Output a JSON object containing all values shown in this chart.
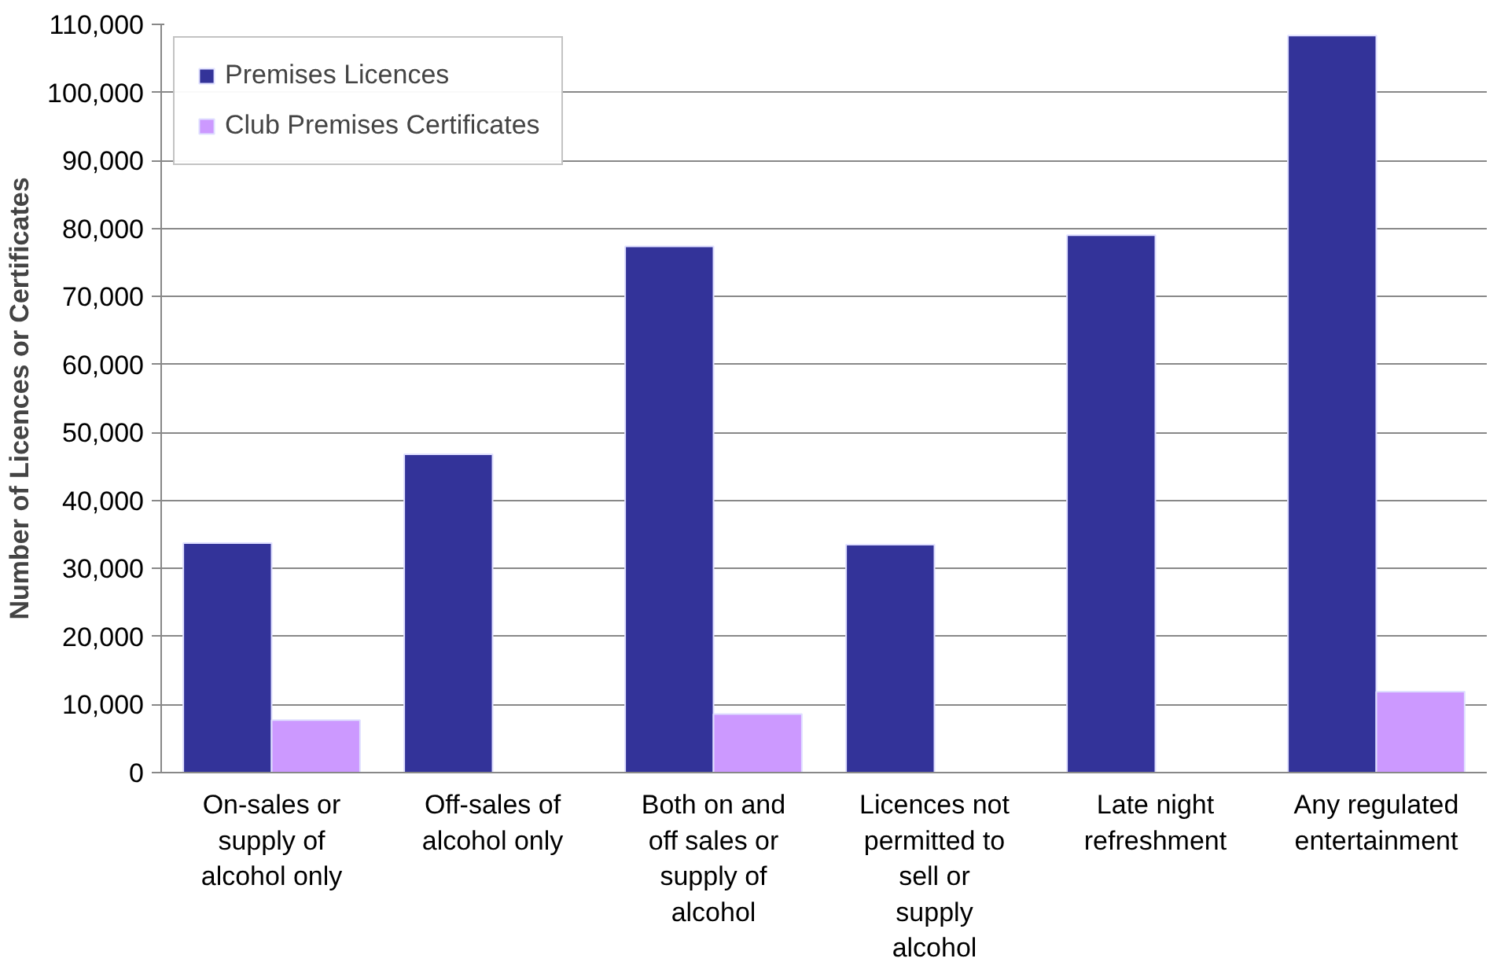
{
  "chart_data": {
    "type": "bar",
    "categories": [
      "On-sales or supply of alcohol only",
      "Off-sales of alcohol only",
      "Both on and off sales or supply of alcohol",
      "Licences not permitted to sell or supply alcohol",
      "Late night refreshment",
      "Any regulated entertainment"
    ],
    "ylabel": "Number of Licences or Certificates",
    "series": [
      {
        "name": "Premises Licences",
        "color": "#333399",
        "values": [
          33750,
          46800,
          77350,
          33500,
          79000,
          108350
        ]
      },
      {
        "name": "Club Premises Certificates",
        "color": "#cc99ff",
        "values": [
          7700,
          null,
          8600,
          null,
          null,
          11900
        ]
      }
    ],
    "ylim": [
      0,
      110000
    ],
    "yticks": [
      {
        "value": 0,
        "label": "0"
      },
      {
        "value": 10000,
        "label": "10,000"
      },
      {
        "value": 20000,
        "label": "20,000"
      },
      {
        "value": 30000,
        "label": "30,000"
      },
      {
        "value": 40000,
        "label": "40,000"
      },
      {
        "value": 50000,
        "label": "50,000"
      },
      {
        "value": 60000,
        "label": "60,000"
      },
      {
        "value": 70000,
        "label": "70,000"
      },
      {
        "value": 80000,
        "label": "80,000"
      },
      {
        "value": 90000,
        "label": "90,000"
      },
      {
        "value": 100000,
        "label": "100,000"
      },
      {
        "value": 110000,
        "label": "110,000"
      }
    ],
    "grid": "y",
    "legend": "top left"
  }
}
